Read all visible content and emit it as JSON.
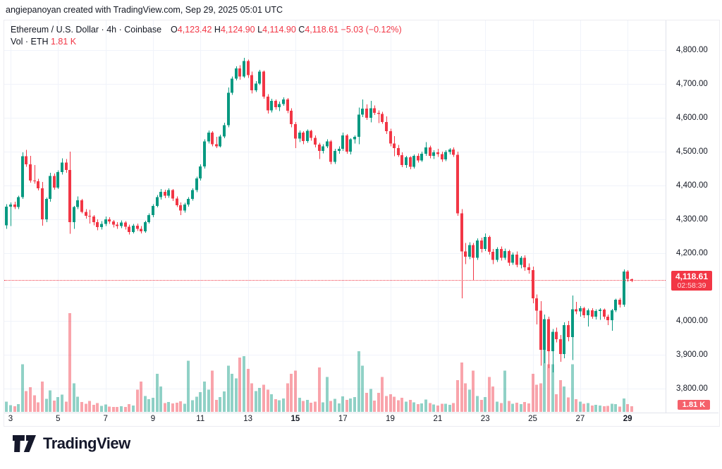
{
  "attribution": "angiepanoyan created with TradingView.com, Sep 29, 2025 05:01 UTC",
  "legend": {
    "symbol": "Ethereum / U.S. Dollar",
    "sep1": "·",
    "interval": "4h",
    "sep2": "·",
    "exchange": "Coinbase",
    "o_label": "O",
    "o_value": "4,123.42",
    "h_label": "H",
    "h_value": "4,124.90",
    "l_label": "L",
    "l_value": "4,114.90",
    "c_label": "C",
    "c_value": "4,118.61",
    "change": "−5.03 (−0.12%)",
    "vol_label": "Vol · ETH",
    "vol_value": "1.81 K"
  },
  "price_axis": {
    "labels": [
      {
        "p": 4800,
        "text": "4,800.00"
      },
      {
        "p": 4700,
        "text": "4,700.00"
      },
      {
        "p": 4600,
        "text": "4,600.00"
      },
      {
        "p": 4500,
        "text": "4,500.00"
      },
      {
        "p": 4400,
        "text": "4,400.00"
      },
      {
        "p": 4300,
        "text": "4,300.00"
      },
      {
        "p": 4200,
        "text": "4,200.00"
      },
      {
        "p": 4000,
        "text": "4,000.00"
      },
      {
        "p": 3900,
        "text": "3,900.00"
      },
      {
        "p": 3800,
        "text": "3,800.00"
      }
    ],
    "price_tag": {
      "price": "4,118.61",
      "countdown": "02:58:39"
    },
    "volume_tag": "1.81 K"
  },
  "time_axis": {
    "ticks": [
      {
        "label": "3",
        "i": 1,
        "bold": false
      },
      {
        "label": "5",
        "i": 13,
        "bold": false
      },
      {
        "label": "7",
        "i": 25,
        "bold": false
      },
      {
        "label": "9",
        "i": 37,
        "bold": false
      },
      {
        "label": "11",
        "i": 49,
        "bold": false
      },
      {
        "label": "13",
        "i": 61,
        "bold": false
      },
      {
        "label": "15",
        "i": 73,
        "bold": true
      },
      {
        "label": "17",
        "i": 85,
        "bold": false
      },
      {
        "label": "19",
        "i": 97,
        "bold": false
      },
      {
        "label": "21",
        "i": 109,
        "bold": false
      },
      {
        "label": "23",
        "i": 121,
        "bold": false
      },
      {
        "label": "25",
        "i": 133,
        "bold": false
      },
      {
        "label": "27",
        "i": 145,
        "bold": false
      },
      {
        "label": "29",
        "i": 157,
        "bold": true
      }
    ]
  },
  "logo": {
    "text": "TradingView"
  },
  "colors": {
    "up": "#089981",
    "down": "#f23645",
    "vol_up": "rgba(8,153,129,0.45)",
    "vol_down": "rgba(242,54,69,0.45)",
    "grid": "#f0f3fa",
    "axis_border": "#e0e3eb",
    "text": "#131722",
    "price_tag_bg": "#f23645",
    "volume_tag_bg": "#f5616b",
    "event_purple": "#8e24aa",
    "event_flag_red": "#ef4048",
    "event_flag_blue": "#3d5afe"
  },
  "chart_data": {
    "type": "candlestick+volume",
    "title": "Ethereum / U.S. Dollar · 4h · Coinbase",
    "interval": "4h",
    "month": "Sep 2025",
    "ohlc_readout": {
      "open": 4123.42,
      "high": 4124.9,
      "low": 4114.9,
      "close": 4118.61,
      "change": -5.03,
      "change_pct": -0.12
    },
    "current_price": 4118.61,
    "current_volume_k": 1.81,
    "y_axis": {
      "min": 3800,
      "max": 4800,
      "step": 100
    },
    "x_axis": {
      "first_candle": "Sep 2 20:00",
      "last_candle": "Sep 29 04:00",
      "candles_per_day": 6
    },
    "volume_unit": "K ETH",
    "volume_max_k": 31,
    "candles": [
      [
        4282,
        4345,
        4272,
        4338,
        3.2
      ],
      [
        4338,
        4350,
        4280,
        4344,
        2.1
      ],
      [
        4344,
        4352,
        4330,
        4336,
        1.8
      ],
      [
        4336,
        4370,
        4330,
        4366,
        2.4
      ],
      [
        4366,
        4498,
        4360,
        4486,
        15
      ],
      [
        4486,
        4505,
        4455,
        4462,
        6.5
      ],
      [
        4462,
        4488,
        4408,
        4415,
        7.8
      ],
      [
        4415,
        4460,
        4405,
        4412,
        5.2
      ],
      [
        4412,
        4420,
        4385,
        4392,
        3
      ],
      [
        4392,
        4410,
        4281,
        4300,
        9.5
      ],
      [
        4300,
        4365,
        4292,
        4360,
        4.1
      ],
      [
        4360,
        4437,
        4352,
        4428,
        6.8
      ],
      [
        4428,
        4435,
        4388,
        4394,
        3.5
      ],
      [
        4394,
        4445,
        4390,
        4440,
        4.6
      ],
      [
        4440,
        4480,
        4432,
        4468,
        5.4
      ],
      [
        4468,
        4478,
        4438,
        4446,
        3.2
      ],
      [
        4446,
        4500,
        4257,
        4292,
        31
      ],
      [
        4292,
        4340,
        4272,
        4336,
        9
      ],
      [
        4336,
        4368,
        4330,
        4356,
        4.8
      ],
      [
        4356,
        4360,
        4318,
        4322,
        3.1
      ],
      [
        4322,
        4330,
        4302,
        4310,
        2.6
      ],
      [
        4310,
        4328,
        4288,
        4308,
        3.4
      ],
      [
        4308,
        4312,
        4282,
        4292,
        2.2
      ],
      [
        4292,
        4300,
        4268,
        4277,
        2.8
      ],
      [
        4277,
        4295,
        4270,
        4286,
        1.9
      ],
      [
        4286,
        4308,
        4280,
        4300,
        2.3
      ],
      [
        4300,
        4306,
        4286,
        4294,
        1.7
      ],
      [
        4294,
        4298,
        4276,
        4284,
        1.5
      ],
      [
        4284,
        4292,
        4272,
        4280,
        1.6
      ],
      [
        4280,
        4297,
        4274,
        4291,
        1.8
      ],
      [
        4291,
        4295,
        4270,
        4278,
        1.5
      ],
      [
        4278,
        4284,
        4255,
        4262,
        2.4
      ],
      [
        4262,
        4286,
        4258,
        4281,
        2
      ],
      [
        4281,
        4288,
        4266,
        4272,
        7
      ],
      [
        4272,
        4280,
        4258,
        4265,
        9.5
      ],
      [
        4265,
        4296,
        4260,
        4292,
        5
      ],
      [
        4292,
        4318,
        4288,
        4312,
        4
      ],
      [
        4312,
        4345,
        4306,
        4340,
        4.4
      ],
      [
        4340,
        4372,
        4335,
        4366,
        12
      ],
      [
        4366,
        4390,
        4358,
        4381,
        8
      ],
      [
        4381,
        4388,
        4362,
        4370,
        2.8
      ],
      [
        4370,
        4392,
        4364,
        4386,
        3.1
      ],
      [
        4386,
        4390,
        4354,
        4361,
        2.7
      ],
      [
        4361,
        4368,
        4336,
        4342,
        2.9
      ],
      [
        4342,
        4350,
        4312,
        4326,
        3.3
      ],
      [
        4326,
        4349,
        4320,
        4344,
        2.5
      ],
      [
        4344,
        4366,
        4338,
        4360,
        16
      ],
      [
        4360,
        4392,
        4355,
        4386,
        3.6
      ],
      [
        4386,
        4426,
        4380,
        4421,
        4.8
      ],
      [
        4421,
        4462,
        4415,
        4456,
        6.2
      ],
      [
        4456,
        4536,
        4450,
        4530,
        9.5
      ],
      [
        4530,
        4562,
        4524,
        4556,
        7
      ],
      [
        4556,
        4560,
        4516,
        4522,
        13
      ],
      [
        4522,
        4544,
        4510,
        4516,
        3.8
      ],
      [
        4516,
        4550,
        4512,
        4545,
        4.6
      ],
      [
        4545,
        4585,
        4540,
        4578,
        6.4
      ],
      [
        4578,
        4690,
        4572,
        4674,
        14.5
      ],
      [
        4674,
        4722,
        4668,
        4716,
        12
      ],
      [
        4716,
        4752,
        4710,
        4746,
        10.5
      ],
      [
        4746,
        4755,
        4712,
        4722,
        17
      ],
      [
        4722,
        4777,
        4718,
        4768,
        17.5
      ],
      [
        4768,
        4772,
        4718,
        4726,
        13.5
      ],
      [
        4726,
        4736,
        4672,
        4681,
        9
      ],
      [
        4681,
        4708,
        4676,
        4701,
        6.5
      ],
      [
        4701,
        4742,
        4697,
        4736,
        7.5
      ],
      [
        4736,
        4740,
        4656,
        4662,
        8.5
      ],
      [
        4662,
        4670,
        4612,
        4622,
        7
      ],
      [
        4622,
        4656,
        4616,
        4650,
        5.5
      ],
      [
        4650,
        4654,
        4624,
        4631,
        4
      ],
      [
        4631,
        4648,
        4620,
        4641,
        3.6
      ],
      [
        4641,
        4660,
        4635,
        4654,
        4.2
      ],
      [
        4654,
        4658,
        4614,
        4621,
        9
      ],
      [
        4621,
        4628,
        4572,
        4581,
        12
      ],
      [
        4581,
        4588,
        4510,
        4539,
        13
      ],
      [
        4539,
        4562,
        4528,
        4556,
        4.4
      ],
      [
        4556,
        4560,
        4522,
        4531,
        3.4
      ],
      [
        4531,
        4566,
        4526,
        4561,
        3.8
      ],
      [
        4561,
        4565,
        4532,
        4541,
        2.9
      ],
      [
        4541,
        4548,
        4512,
        4521,
        3.2
      ],
      [
        4521,
        4526,
        4478,
        4502,
        14
      ],
      [
        4502,
        4522,
        4495,
        4516,
        3
      ],
      [
        4516,
        4536,
        4510,
        4530,
        11
      ],
      [
        4530,
        4534,
        4462,
        4470,
        3.4
      ],
      [
        4470,
        4508,
        4464,
        4502,
        4.1
      ],
      [
        4502,
        4516,
        4494,
        4508,
        2.7
      ],
      [
        4508,
        4556,
        4502,
        4548,
        4.9
      ],
      [
        4548,
        4552,
        4494,
        4500,
        3.8
      ],
      [
        4500,
        4540,
        4492,
        4536,
        4.2
      ],
      [
        4536,
        4548,
        4524,
        4544,
        4.6
      ],
      [
        4544,
        4630,
        4522,
        4609,
        19
      ],
      [
        4609,
        4654,
        4602,
        4627,
        14.5
      ],
      [
        4627,
        4640,
        4594,
        4600,
        6
      ],
      [
        4600,
        4650,
        4586,
        4628,
        7.2
      ],
      [
        4628,
        4636,
        4608,
        4615,
        3.5
      ],
      [
        4615,
        4622,
        4584,
        4611,
        6
      ],
      [
        4611,
        4618,
        4582,
        4588,
        11
      ],
      [
        4588,
        4604,
        4552,
        4560,
        5
      ],
      [
        4560,
        4568,
        4516,
        4524,
        5.5
      ],
      [
        4524,
        4546,
        4486,
        4510,
        4.8
      ],
      [
        4510,
        4520,
        4484,
        4490,
        3.6
      ],
      [
        4490,
        4498,
        4454,
        4460,
        4.4
      ],
      [
        4460,
        4488,
        4452,
        4483,
        3.2
      ],
      [
        4483,
        4486,
        4448,
        4455,
        3.8
      ],
      [
        4455,
        4492,
        4450,
        4487,
        3
      ],
      [
        4487,
        4495,
        4468,
        4474,
        2.4
      ],
      [
        4474,
        4500,
        4470,
        4494,
        2.7
      ],
      [
        4494,
        4528,
        4488,
        4512,
        3.9
      ],
      [
        4512,
        4518,
        4480,
        4487,
        2.8
      ],
      [
        4487,
        4504,
        4478,
        4498,
        2.3
      ],
      [
        4498,
        4508,
        4484,
        4493,
        2
      ],
      [
        4493,
        4500,
        4470,
        4477,
        2.5
      ],
      [
        4477,
        4504,
        4472,
        4499,
        2.6
      ],
      [
        4499,
        4510,
        4492,
        4506,
        2.2
      ],
      [
        4506,
        4512,
        4484,
        4491,
        2.8
      ],
      [
        4491,
        4500,
        4310,
        4318,
        10
      ],
      [
        4318,
        4330,
        4067,
        4205,
        15.5
      ],
      [
        4205,
        4230,
        4168,
        4190,
        9
      ],
      [
        4190,
        4232,
        4182,
        4224,
        7
      ],
      [
        4224,
        4230,
        4119,
        4186,
        13
      ],
      [
        4186,
        4244,
        4180,
        4238,
        5
      ],
      [
        4238,
        4246,
        4202,
        4212,
        3.8
      ],
      [
        4212,
        4258,
        4206,
        4248,
        4.6
      ],
      [
        4248,
        4252,
        4196,
        4204,
        11
      ],
      [
        4204,
        4212,
        4168,
        4180,
        8
      ],
      [
        4180,
        4218,
        4174,
        4212,
        3.2
      ],
      [
        4212,
        4220,
        4178,
        4186,
        2.8
      ],
      [
        4186,
        4214,
        4180,
        4206,
        13
      ],
      [
        4206,
        4210,
        4162,
        4172,
        3.4
      ],
      [
        4172,
        4202,
        4166,
        4196,
        2.6
      ],
      [
        4196,
        4205,
        4158,
        4166,
        2.9
      ],
      [
        4166,
        4192,
        4155,
        4186,
        2.4
      ],
      [
        4186,
        4194,
        4148,
        4158,
        3.1
      ],
      [
        4158,
        4170,
        4140,
        4150,
        2.7
      ],
      [
        4150,
        4160,
        4052,
        4067,
        12
      ],
      [
        4067,
        4078,
        3990,
        4030,
        8.5
      ],
      [
        4030,
        4058,
        3868,
        3915,
        9
      ],
      [
        3915,
        4019,
        3875,
        4005,
        20
      ],
      [
        4005,
        4012,
        3860,
        3910,
        15
      ],
      [
        3910,
        3976,
        3848,
        3968,
        15
      ],
      [
        3968,
        3980,
        3936,
        3946,
        5.5
      ],
      [
        3946,
        3958,
        3879,
        3902,
        10
      ],
      [
        3902,
        3996,
        3890,
        3988,
        8
      ],
      [
        3988,
        4000,
        3940,
        3952,
        4.5
      ],
      [
        3952,
        4075,
        3884,
        4034,
        15
      ],
      [
        4034,
        4056,
        4020,
        4028,
        4
      ],
      [
        4028,
        4044,
        4012,
        4037,
        3.2
      ],
      [
        4037,
        4042,
        4008,
        4017,
        2.6
      ],
      [
        4017,
        4036,
        3983,
        4031,
        2.8
      ],
      [
        4031,
        4038,
        4006,
        4012,
        2
      ],
      [
        4012,
        4034,
        4004,
        4029,
        2.2
      ],
      [
        4029,
        4038,
        4003,
        4033,
        2
      ],
      [
        4033,
        4036,
        4005,
        4012,
        1.8
      ],
      [
        4012,
        4019,
        3988,
        4002,
        1.9
      ],
      [
        4002,
        4035,
        3971,
        4031,
        2.6
      ],
      [
        4031,
        4066,
        4026,
        4062,
        2.4
      ],
      [
        4062,
        4068,
        4040,
        4048,
        1.7
      ],
      [
        4048,
        4152,
        4042,
        4146,
        4.2
      ],
      [
        4146,
        4150,
        4116,
        4124,
        2.4
      ],
      [
        4123.42,
        4124.9,
        4114.9,
        4118.61,
        1.81
      ]
    ]
  }
}
